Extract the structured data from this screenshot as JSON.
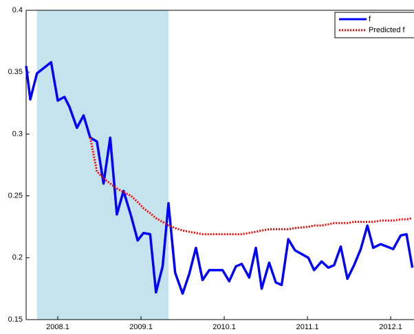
{
  "chart_data": {
    "type": "line",
    "x": [
      2007.72,
      2007.77,
      2007.85,
      2008.02,
      2008.1,
      2008.18,
      2008.24,
      2008.33,
      2008.41,
      2008.49,
      2008.57,
      2008.65,
      2008.73,
      2008.81,
      2008.89,
      2008.98,
      2009.06,
      2009.13,
      2009.21,
      2009.28,
      2009.36,
      2009.43,
      2009.51,
      2009.6,
      2009.68,
      2009.76,
      2009.84,
      2009.92,
      2010.08,
      2010.16,
      2010.24,
      2010.31,
      2010.4,
      2010.48,
      2010.55,
      2010.64,
      2010.72,
      2010.79,
      2010.87,
      2010.95,
      2011.11,
      2011.18,
      2011.27,
      2011.35,
      2011.42,
      2011.5,
      2011.58,
      2011.66,
      2011.74,
      2011.82,
      2011.89,
      2011.98,
      2012.13,
      2012.22,
      2012.29,
      2012.36
    ],
    "series": [
      {
        "name": "f",
        "color": "#0000ff",
        "style": "solid",
        "values": [
          0.355,
          0.328,
          0.349,
          0.358,
          0.327,
          0.33,
          0.322,
          0.305,
          0.315,
          0.297,
          0.294,
          0.26,
          0.297,
          0.235,
          0.254,
          0.234,
          0.214,
          0.22,
          0.219,
          0.172,
          0.193,
          0.244,
          0.188,
          0.171,
          0.187,
          0.208,
          0.182,
          0.19,
          0.19,
          0.181,
          0.193,
          0.195,
          0.184,
          0.208,
          0.175,
          0.196,
          0.18,
          0.178,
          0.215,
          0.206,
          0.2,
          0.19,
          0.197,
          0.192,
          0.194,
          0.209,
          0.183,
          0.194,
          0.207,
          0.226,
          0.208,
          0.211,
          0.207,
          0.218,
          0.219,
          0.192
        ]
      },
      {
        "name": "Predicted f",
        "color": "#ff0000",
        "style": "dotted",
        "values": [
          null,
          null,
          null,
          null,
          null,
          null,
          null,
          null,
          null,
          0.297,
          0.27,
          0.264,
          0.26,
          0.256,
          0.253,
          0.25,
          0.245,
          0.24,
          0.236,
          0.232,
          0.229,
          0.226,
          0.224,
          0.222,
          0.221,
          0.22,
          0.219,
          0.219,
          0.219,
          0.219,
          0.219,
          0.219,
          0.22,
          0.221,
          0.222,
          0.223,
          0.223,
          0.223,
          0.223,
          0.224,
          0.225,
          0.226,
          0.226,
          0.227,
          0.228,
          0.228,
          0.228,
          0.229,
          0.229,
          0.229,
          0.229,
          0.23,
          0.23,
          0.231,
          0.231,
          0.232
        ]
      }
    ],
    "shade": [
      2007.85,
      2009.43
    ],
    "shade_color": "#c5e3ec",
    "xlim": [
      2007.72,
      2012.38
    ],
    "xticks": [
      2008.1,
      2009.1,
      2010.1,
      2011.1,
      2012.1
    ],
    "ylim": [
      0.15,
      0.4
    ],
    "yticks": [
      0.15,
      0.2,
      0.25,
      0.3,
      0.35,
      0.4
    ],
    "legend": "top-right"
  }
}
